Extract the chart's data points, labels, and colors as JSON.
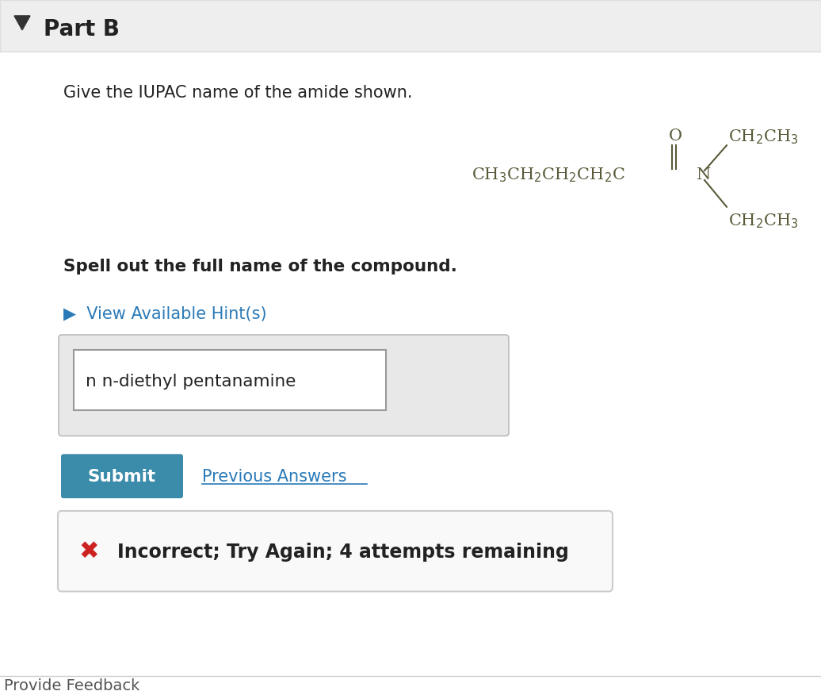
{
  "background_color": "#ffffff",
  "header_bg": "#eeeeee",
  "part_b_text": "Part B",
  "question_text": "Give the IUPAC name of the amide shown.",
  "spell_out_text": "Spell out the full name of the compound.",
  "hint_text": "▶  View Available Hint(s)",
  "hint_color": "#2a7ab8",
  "input_text": "n n-diethyl pentanamine",
  "submit_text": "Submit",
  "submit_bg": "#3b8baa",
  "submit_text_color": "#ffffff",
  "previous_answers_text": "Previous Answers",
  "previous_answers_color": "#2a7ab8",
  "incorrect_text": "Incorrect; Try Again; 4 attempts remaining",
  "incorrect_bg": "#f9f9f9",
  "incorrect_border": "#cccccc",
  "x_color": "#cc2222",
  "mol_color": "#5a5a3a",
  "provide_feedback_text": "Provide Feedback",
  "provide_feedback_color": "#555555"
}
